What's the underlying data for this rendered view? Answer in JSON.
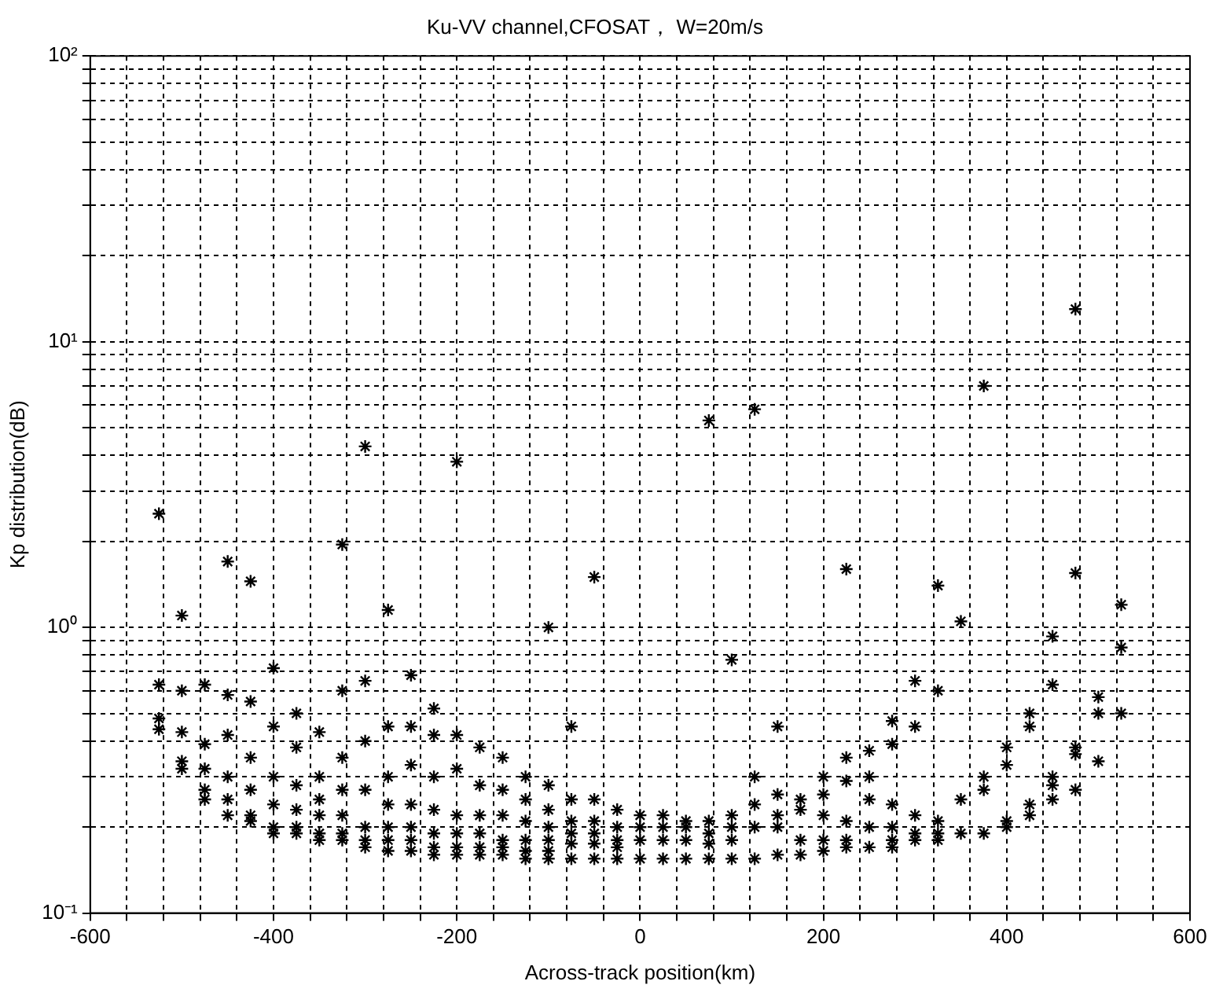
{
  "chart_data": {
    "type": "scatter",
    "title": "Ku-VV channel,CFOSAT， W=20m/s",
    "xlabel": "Across-track position(km)",
    "ylabel": "Kp distribution(dB)",
    "log": "y",
    "grid": true,
    "marker": "cross",
    "legend": false,
    "xlim": [
      -600,
      600
    ],
    "ylim": [
      0.1,
      100
    ],
    "xticks": [
      -600,
      {
        "value": -560,
        "label": null
      },
      {
        "value": -520,
        "label": null
      },
      {
        "value": -480,
        "label": null
      },
      {
        "value": -440,
        "label": null
      },
      -400,
      {
        "value": -360,
        "label": null
      },
      {
        "value": -320,
        "label": null
      },
      {
        "value": -280,
        "label": null
      },
      {
        "value": -240,
        "label": null
      },
      -200,
      {
        "value": -160,
        "label": null
      },
      {
        "value": -120,
        "label": null
      },
      {
        "value": -80,
        "label": null
      },
      {
        "value": -40,
        "label": null
      },
      0,
      {
        "value": 40,
        "label": null
      },
      {
        "value": 80,
        "label": null
      },
      {
        "value": 120,
        "label": null
      },
      {
        "value": 160,
        "label": null
      },
      200,
      {
        "value": 240,
        "label": null
      },
      {
        "value": 280,
        "label": null
      },
      {
        "value": 320,
        "label": null
      },
      {
        "value": 360,
        "label": null
      },
      400,
      {
        "value": 440,
        "label": null
      },
      {
        "value": 480,
        "label": null
      },
      {
        "value": 520,
        "label": null
      },
      {
        "value": 560,
        "label": null
      },
      600
    ],
    "yticks": [
      {
        "value": 0.1,
        "label": "10⁻¹"
      },
      {
        "value": 0.2,
        "label": null
      },
      {
        "value": 0.3,
        "label": null
      },
      {
        "value": 0.4,
        "label": null
      },
      {
        "value": 0.5,
        "label": null
      },
      {
        "value": 0.6,
        "label": null
      },
      {
        "value": 0.7,
        "label": null
      },
      {
        "value": 0.8,
        "label": null
      },
      {
        "value": 0.9,
        "label": null
      },
      {
        "value": 1,
        "label": "10⁰"
      },
      {
        "value": 2,
        "label": null
      },
      {
        "value": 3,
        "label": null
      },
      {
        "value": 4,
        "label": null
      },
      {
        "value": 5,
        "label": null
      },
      {
        "value": 6,
        "label": null
      },
      {
        "value": 7,
        "label": null
      },
      {
        "value": 8,
        "label": null
      },
      {
        "value": 9,
        "label": null
      },
      {
        "value": 10,
        "label": "10¹"
      },
      {
        "value": 20,
        "label": null
      },
      {
        "value": 30,
        "label": null
      },
      {
        "value": 40,
        "label": null
      },
      {
        "value": 50,
        "label": null
      },
      {
        "value": 60,
        "label": null
      },
      {
        "value": 70,
        "label": null
      },
      {
        "value": 80,
        "label": null
      },
      {
        "value": 90,
        "label": null
      },
      {
        "value": 100,
        "label": "10²"
      }
    ],
    "series": [
      {
        "color": "#000000",
        "x": [
          -525,
          -525,
          -525,
          -525,
          -500,
          -500,
          -500,
          -500,
          -500,
          -475,
          -475,
          -475,
          -475,
          -475,
          -450,
          -450,
          -450,
          -450,
          -450,
          -450,
          -425,
          -425,
          -425,
          -425,
          -425,
          -425,
          -400,
          -400,
          -400,
          -400,
          -400,
          -400,
          -375,
          -375,
          -375,
          -375,
          -375,
          -375,
          -350,
          -350,
          -350,
          -350,
          -350,
          -350,
          -325,
          -325,
          -325,
          -325,
          -325,
          -325,
          -325,
          -300,
          -300,
          -300,
          -300,
          -300,
          -300,
          -300,
          -275,
          -275,
          -275,
          -275,
          -275,
          -275,
          -275,
          -250,
          -250,
          -250,
          -250,
          -250,
          -250,
          -250,
          -225,
          -225,
          -225,
          -225,
          -225,
          -225,
          -225,
          -200,
          -200,
          -200,
          -200,
          -200,
          -200,
          -200,
          -175,
          -175,
          -175,
          -175,
          -175,
          -175,
          -150,
          -150,
          -150,
          -150,
          -150,
          -150,
          -125,
          -125,
          -125,
          -125,
          -125,
          -125,
          -100,
          -100,
          -100,
          -100,
          -100,
          -100,
          -100,
          -75,
          -75,
          -75,
          -75,
          -75,
          -75,
          -50,
          -50,
          -50,
          -50,
          -50,
          -50,
          -25,
          -25,
          -25,
          -25,
          -25,
          0,
          0,
          0,
          0,
          25,
          25,
          25,
          25,
          50,
          50,
          50,
          50,
          75,
          75,
          75,
          75,
          75,
          100,
          100,
          100,
          100,
          100,
          125,
          125,
          125,
          125,
          125,
          150,
          150,
          150,
          150,
          150,
          175,
          175,
          175,
          175,
          200,
          200,
          200,
          200,
          200,
          225,
          225,
          225,
          225,
          225,
          225,
          250,
          250,
          250,
          250,
          250,
          275,
          275,
          275,
          275,
          275,
          275,
          300,
          300,
          300,
          300,
          300,
          325,
          325,
          325,
          325,
          325,
          350,
          350,
          350,
          375,
          375,
          375,
          375,
          400,
          400,
          400,
          400,
          425,
          425,
          425,
          425,
          450,
          450,
          450,
          450,
          450,
          475,
          475,
          475,
          475,
          475,
          500,
          500,
          500,
          525,
          525,
          525
        ],
        "values": [
          2.5,
          0.63,
          0.48,
          0.44,
          1.1,
          0.6,
          0.43,
          0.34,
          0.32,
          0.63,
          0.39,
          0.32,
          0.27,
          0.25,
          1.7,
          0.58,
          0.42,
          0.3,
          0.25,
          0.22,
          1.45,
          0.55,
          0.35,
          0.27,
          0.22,
          0.21,
          0.72,
          0.45,
          0.3,
          0.24,
          0.2,
          0.19,
          0.5,
          0.38,
          0.28,
          0.23,
          0.2,
          0.19,
          0.43,
          0.3,
          0.25,
          0.22,
          0.19,
          0.18,
          1.95,
          0.6,
          0.35,
          0.27,
          0.22,
          0.19,
          0.18,
          4.3,
          0.65,
          0.4,
          0.27,
          0.2,
          0.18,
          0.17,
          1.15,
          0.45,
          0.3,
          0.24,
          0.2,
          0.18,
          0.165,
          0.68,
          0.45,
          0.33,
          0.24,
          0.2,
          0.18,
          0.165,
          0.52,
          0.42,
          0.3,
          0.23,
          0.19,
          0.17,
          0.16,
          3.8,
          0.42,
          0.32,
          0.22,
          0.19,
          0.17,
          0.16,
          0.38,
          0.28,
          0.22,
          0.19,
          0.17,
          0.16,
          0.35,
          0.27,
          0.22,
          0.18,
          0.17,
          0.16,
          0.3,
          0.25,
          0.21,
          0.18,
          0.165,
          0.155,
          1.0,
          0.28,
          0.23,
          0.2,
          0.18,
          0.165,
          0.155,
          0.45,
          0.25,
          0.21,
          0.19,
          0.175,
          0.155,
          1.5,
          0.25,
          0.21,
          0.19,
          0.175,
          0.155,
          0.23,
          0.2,
          0.18,
          0.17,
          0.155,
          0.22,
          0.2,
          0.18,
          0.155,
          0.22,
          0.2,
          0.18,
          0.155,
          0.21,
          0.2,
          0.18,
          0.155,
          5.3,
          0.21,
          0.19,
          0.175,
          0.155,
          0.77,
          0.22,
          0.2,
          0.18,
          0.155,
          5.8,
          0.3,
          0.24,
          0.2,
          0.155,
          0.45,
          0.26,
          0.22,
          0.2,
          0.16,
          0.25,
          0.23,
          0.18,
          0.16,
          0.3,
          0.26,
          0.22,
          0.18,
          0.165,
          1.6,
          0.35,
          0.29,
          0.21,
          0.18,
          0.17,
          0.37,
          0.3,
          0.25,
          0.2,
          0.17,
          0.47,
          0.39,
          0.24,
          0.2,
          0.18,
          0.17,
          0.65,
          0.45,
          0.22,
          0.19,
          0.18,
          1.4,
          0.6,
          0.21,
          0.19,
          0.18,
          1.05,
          0.25,
          0.19,
          7.0,
          0.3,
          0.27,
          0.19,
          0.38,
          0.33,
          0.21,
          0.2,
          0.5,
          0.45,
          0.24,
          0.22,
          0.93,
          0.63,
          0.3,
          0.28,
          0.25,
          13,
          1.55,
          0.38,
          0.36,
          0.27,
          0.57,
          0.5,
          0.34,
          1.2,
          0.85,
          0.5
        ]
      }
    ]
  }
}
